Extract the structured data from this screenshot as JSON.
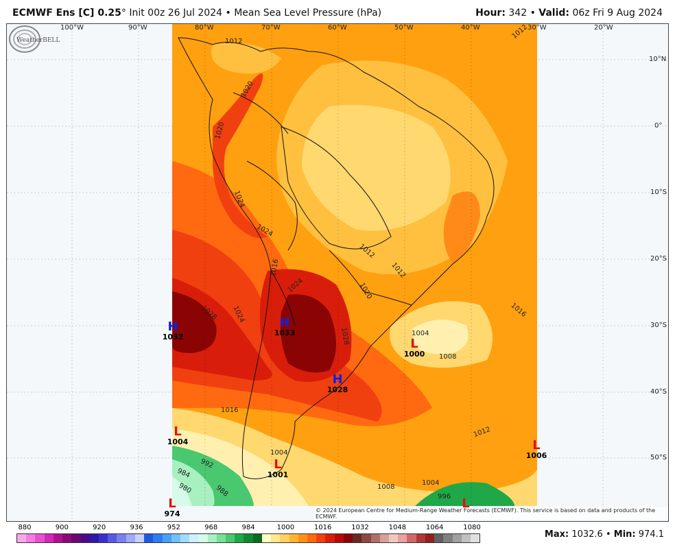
{
  "header": {
    "model": "ECMWF Ens [C] 0.25",
    "degree": "°",
    "init": "Init 00z 26 Jul 2024",
    "bullet": "•",
    "field": "Mean Sea Level Pressure (hPa)",
    "hour_label": "Hour:",
    "hour_value": "342",
    "valid_label": "Valid:",
    "valid_value": "06z Fri 9 Aug 2024"
  },
  "longitude_labels": [
    "100°W",
    "90°W",
    "80°W",
    "70°W",
    "60°W",
    "50°W",
    "40°W",
    "30°W",
    "20°W"
  ],
  "latitude_labels": [
    "10°N",
    "0°",
    "10°S",
    "20°S",
    "30°S",
    "40°S",
    "50°S"
  ],
  "contour_labels": [
    "1012",
    "1012",
    "1020",
    "1020",
    "1024",
    "1024",
    "1016",
    "1028",
    "1024",
    "1024",
    "1020",
    "1012",
    "1012",
    "1016",
    "1028",
    "1004",
    "1008",
    "1016",
    "1012",
    "1004",
    "1008",
    "1004",
    "996",
    "992",
    "988",
    "984",
    "980"
  ],
  "pressure_centers": [
    {
      "type": "H",
      "value": "1032",
      "color": "#1020e0"
    },
    {
      "type": "H",
      "value": "1033",
      "color": "#1020e0"
    },
    {
      "type": "H",
      "value": "1028",
      "color": "#1020e0"
    },
    {
      "type": "L",
      "value": "1000",
      "color": "#e01010"
    },
    {
      "type": "L",
      "value": "1004",
      "color": "#e01010"
    },
    {
      "type": "L",
      "value": "1001",
      "color": "#e01010"
    },
    {
      "type": "L",
      "value": "1006",
      "color": "#e01010"
    },
    {
      "type": "L",
      "value": "974",
      "color": "#e01010"
    },
    {
      "type": "L",
      "value": "",
      "color": "#e01010"
    }
  ],
  "copyright": "© 2024 European Centre for Medium-Range Weather Forecasts (ECMWF). This service is based on data and products of the ECMWF.",
  "logo_text": "WeatherBELL",
  "colorbar": {
    "labels": [
      "880",
      "900",
      "920",
      "936",
      "952",
      "968",
      "984",
      "1000",
      "1016",
      "1032",
      "1048",
      "1064",
      "1080"
    ],
    "colors": [
      "#f7a8e8",
      "#f07ee0",
      "#e850d2",
      "#d028b8",
      "#b0108f",
      "#8a0a78",
      "#6a0870",
      "#4a0a8a",
      "#3018a8",
      "#3a30c8",
      "#5a58e0",
      "#7a80f0",
      "#a0a8f8",
      "#c8d0fc",
      "#1e5ae0",
      "#2e7cf0",
      "#4aa0f8",
      "#70c0fc",
      "#a0dcfe",
      "#cef0ff",
      "#d6fbe8",
      "#a8f0c0",
      "#78e098",
      "#4ac870",
      "#20a848",
      "#108a30",
      "#0a6a20",
      "#fffdc0",
      "#ffe890",
      "#ffd060",
      "#ffb430",
      "#ff9018",
      "#ff6a10",
      "#f04010",
      "#d81e0a",
      "#b40a0a",
      "#8a0404",
      "#6a2a20",
      "#8a4a40",
      "#b07068",
      "#d8a098",
      "#f0c8c0",
      "#e8a0a0",
      "#d06868",
      "#b03838",
      "#902020",
      "#606060",
      "#808080",
      "#a0a0a0",
      "#c0c0c0",
      "#e0e0e0"
    ]
  },
  "stats": {
    "max_label": "Max:",
    "max_value": "1032.6",
    "min_label": "Min:",
    "min_value": "974.1",
    "bullet": "•"
  }
}
